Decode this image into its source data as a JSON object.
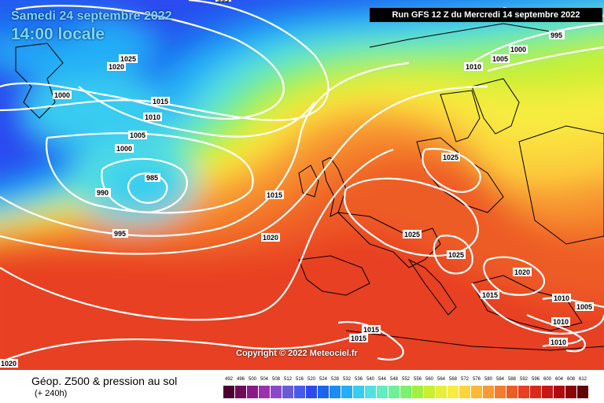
{
  "header": {
    "date_line": "Samedi 24 septembre 2022",
    "time_line": "14:00 locale",
    "run_info": "Run GFS 12 Z du Mercredi 14 septembre 2022"
  },
  "copyright": "Copyright © 2022 Meteociel.fr",
  "footer": {
    "product": "Géop. Z500 & pression au sol",
    "lead_time": "(+ 240h)"
  },
  "isobar_labels": [
    "1025",
    "1020",
    "1015",
    "1010",
    "1005",
    "1000",
    "1000",
    "995",
    "990",
    "985",
    "995",
    "1015",
    "1020",
    "1025",
    "1025",
    "1025",
    "1020",
    "1015",
    "1015",
    "1015",
    "1010",
    "1010",
    "1010",
    "1005",
    "1020",
    "995",
    "1000",
    "1005",
    "1010"
  ],
  "colorscale": {
    "labels": [
      "492",
      "496",
      "500",
      "504",
      "508",
      "512",
      "516",
      "520",
      "524",
      "528",
      "532",
      "536",
      "540",
      "544",
      "548",
      "552",
      "556",
      "560",
      "564",
      "568",
      "572",
      "576",
      "580",
      "584",
      "588",
      "592",
      "596",
      "600",
      "604",
      "608",
      "612"
    ],
    "colors": [
      "#4b0030",
      "#6e0a5a",
      "#8a1a85",
      "#9a32a8",
      "#8a4ac8",
      "#6a5ad8",
      "#4a5ae8",
      "#2a4af0",
      "#1a64f0",
      "#1a8cf4",
      "#24aef6",
      "#38ccf0",
      "#52e0e0",
      "#62ecc0",
      "#6ef09a",
      "#7cf070",
      "#a0f040",
      "#c8f030",
      "#e4f03c",
      "#f8ec40",
      "#fcd43c",
      "#fcb838",
      "#f89a32",
      "#f47c2c",
      "#ee5c26",
      "#e84020",
      "#dc2818",
      "#c81814",
      "#b00c10",
      "#8c0808",
      "#600404"
    ]
  }
}
